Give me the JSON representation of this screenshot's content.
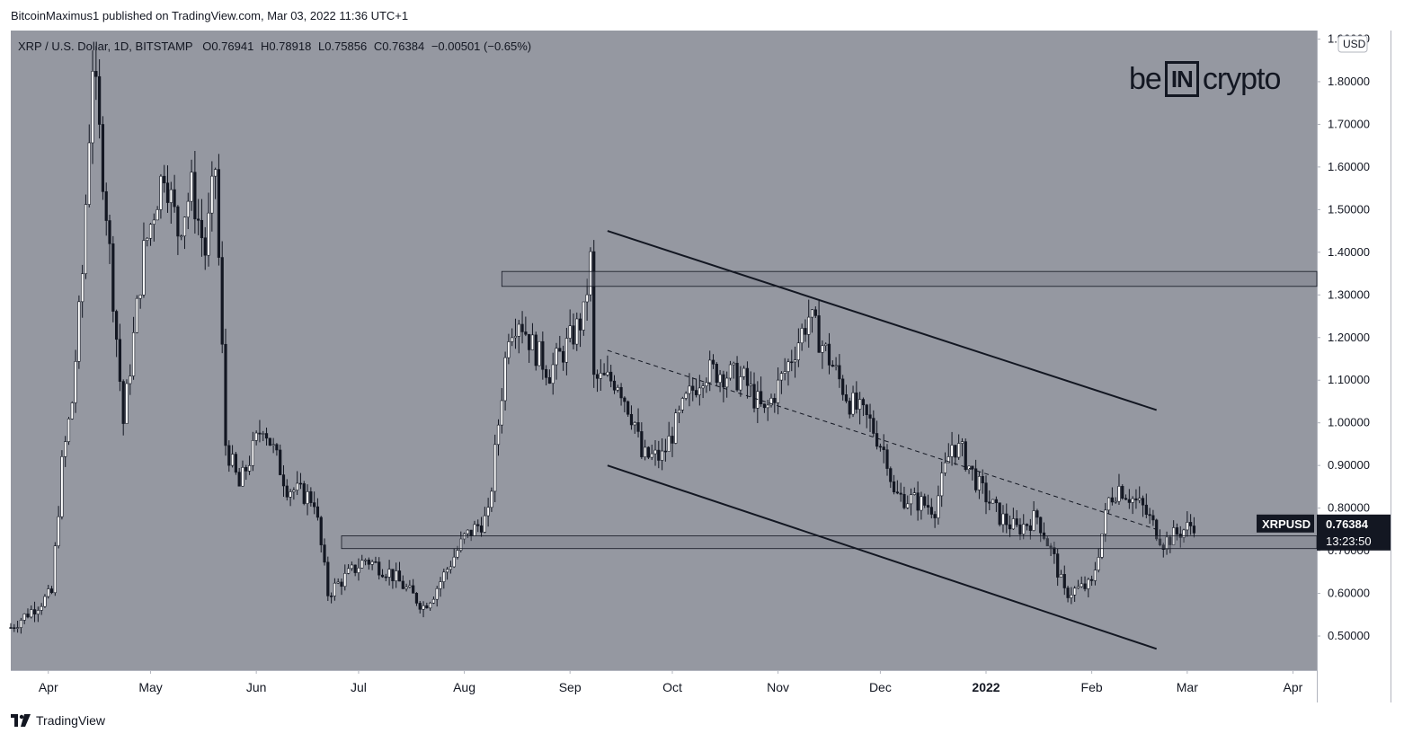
{
  "header": {
    "publisher": "BitcoinMaximus1 published on TradingView.com, Mar 03, 2022 11:36 UTC+1"
  },
  "legend": {
    "symbol": "XRP / U.S. Dollar, 1D, BITSTAMP",
    "o_label": "O",
    "o_value": "0.76941",
    "h_label": "H",
    "h_value": "0.78918",
    "l_label": "L",
    "l_value": "0.75856",
    "c_label": "C",
    "c_value": "0.76384",
    "change": "−0.00501 (−0.65%)"
  },
  "brand": {
    "left": "be",
    "box": "IN",
    "right": "crypto"
  },
  "footer": {
    "label": "TradingView"
  },
  "colors": {
    "plot_background": "#9598a1",
    "candles": "#ffffff",
    "wicks_and_lines": "#131722",
    "price_tag": "#131722"
  },
  "chart_data": {
    "type": "candlestick",
    "symbol": "XRPUSD",
    "currency": "USD",
    "yaxis": {
      "ticks": [
        0.5,
        0.6,
        0.7,
        0.8,
        0.9,
        1.0,
        1.1,
        1.2,
        1.3,
        1.4,
        1.5,
        1.6,
        1.7,
        1.8,
        1.9
      ],
      "tick_labels": [
        "0.50000",
        "0.60000",
        "0.70000",
        "0.80000",
        "0.90000",
        "1.00000",
        "1.10000",
        "1.20000",
        "1.30000",
        "1.40000",
        "1.50000",
        "1.60000",
        "1.70000",
        "1.80000",
        "1.90000"
      ],
      "ylim": [
        0.42,
        1.92
      ],
      "unit_label": "USD"
    },
    "xaxis": {
      "start_date": "2021-03-21",
      "end_date": "2022-04-08",
      "ticks": [
        {
          "date": "2021-04-01",
          "label": "Apr"
        },
        {
          "date": "2021-05-01",
          "label": "May"
        },
        {
          "date": "2021-06-01",
          "label": "Jun"
        },
        {
          "date": "2021-07-01",
          "label": "Jul"
        },
        {
          "date": "2021-08-01",
          "label": "Aug"
        },
        {
          "date": "2021-09-01",
          "label": "Sep"
        },
        {
          "date": "2021-10-01",
          "label": "Oct"
        },
        {
          "date": "2021-11-01",
          "label": "Nov"
        },
        {
          "date": "2021-12-01",
          "label": "Dec"
        },
        {
          "date": "2022-01-01",
          "label": "2022",
          "bold": true
        },
        {
          "date": "2022-02-01",
          "label": "Feb"
        },
        {
          "date": "2022-03-01",
          "label": "Mar"
        },
        {
          "date": "2022-04-01",
          "label": "Apr"
        }
      ]
    },
    "price_path": [
      {
        "date": "2021-03-21",
        "close": 0.52
      },
      {
        "date": "2021-03-27",
        "close": 0.56
      },
      {
        "date": "2021-04-02",
        "close": 0.6
      },
      {
        "date": "2021-04-05",
        "close": 0.9
      },
      {
        "date": "2021-04-08",
        "close": 1.05
      },
      {
        "date": "2021-04-11",
        "close": 1.35
      },
      {
        "date": "2021-04-14",
        "close": 1.85
      },
      {
        "date": "2021-04-18",
        "close": 1.5
      },
      {
        "date": "2021-04-23",
        "close": 1.0
      },
      {
        "date": "2021-04-29",
        "close": 1.4
      },
      {
        "date": "2021-05-05",
        "close": 1.6
      },
      {
        "date": "2021-05-09",
        "close": 1.45
      },
      {
        "date": "2021-05-13",
        "close": 1.55
      },
      {
        "date": "2021-05-17",
        "close": 1.4
      },
      {
        "date": "2021-05-20",
        "close": 1.6
      },
      {
        "date": "2021-05-23",
        "close": 0.95
      },
      {
        "date": "2021-05-27",
        "close": 0.85
      },
      {
        "date": "2021-06-03",
        "close": 1.0
      },
      {
        "date": "2021-06-10",
        "close": 0.85
      },
      {
        "date": "2021-06-18",
        "close": 0.82
      },
      {
        "date": "2021-06-22",
        "close": 0.6
      },
      {
        "date": "2021-06-26",
        "close": 0.63
      },
      {
        "date": "2021-07-03",
        "close": 0.68
      },
      {
        "date": "2021-07-10",
        "close": 0.65
      },
      {
        "date": "2021-07-20",
        "close": 0.57
      },
      {
        "date": "2021-07-23",
        "close": 0.6
      },
      {
        "date": "2021-08-01",
        "close": 0.73
      },
      {
        "date": "2021-08-08",
        "close": 0.78
      },
      {
        "date": "2021-08-11",
        "close": 1.0
      },
      {
        "date": "2021-08-14",
        "close": 1.22
      },
      {
        "date": "2021-08-17",
        "close": 1.25
      },
      {
        "date": "2021-08-21",
        "close": 1.18
      },
      {
        "date": "2021-08-26",
        "close": 1.12
      },
      {
        "date": "2021-08-31",
        "close": 1.18
      },
      {
        "date": "2021-09-05",
        "close": 1.25
      },
      {
        "date": "2021-09-07",
        "close": 1.38
      },
      {
        "date": "2021-09-08",
        "close": 1.1
      },
      {
        "date": "2021-09-15",
        "close": 1.1
      },
      {
        "date": "2021-09-20",
        "close": 1.0
      },
      {
        "date": "2021-09-22",
        "close": 0.92
      },
      {
        "date": "2021-09-28",
        "close": 0.92
      },
      {
        "date": "2021-10-05",
        "close": 1.05
      },
      {
        "date": "2021-10-10",
        "close": 1.12
      },
      {
        "date": "2021-10-15",
        "close": 1.12
      },
      {
        "date": "2021-10-22",
        "close": 1.1
      },
      {
        "date": "2021-10-28",
        "close": 1.02
      },
      {
        "date": "2021-11-03",
        "close": 1.12
      },
      {
        "date": "2021-11-10",
        "close": 1.25
      },
      {
        "date": "2021-11-16",
        "close": 1.15
      },
      {
        "date": "2021-11-22",
        "close": 1.05
      },
      {
        "date": "2021-11-28",
        "close": 1.0
      },
      {
        "date": "2021-12-03",
        "close": 0.92
      },
      {
        "date": "2021-12-05",
        "close": 0.83
      },
      {
        "date": "2021-12-10",
        "close": 0.82
      },
      {
        "date": "2021-12-17",
        "close": 0.8
      },
      {
        "date": "2021-12-22",
        "close": 0.95
      },
      {
        "date": "2021-12-25",
        "close": 0.93
      },
      {
        "date": "2021-12-30",
        "close": 0.85
      },
      {
        "date": "2022-01-05",
        "close": 0.78
      },
      {
        "date": "2022-01-10",
        "close": 0.75
      },
      {
        "date": "2022-01-16",
        "close": 0.78
      },
      {
        "date": "2022-01-21",
        "close": 0.68
      },
      {
        "date": "2022-01-24",
        "close": 0.6
      },
      {
        "date": "2022-02-01",
        "close": 0.62
      },
      {
        "date": "2022-02-06",
        "close": 0.82
      },
      {
        "date": "2022-02-09",
        "close": 0.85
      },
      {
        "date": "2022-02-16",
        "close": 0.8
      },
      {
        "date": "2022-02-22",
        "close": 0.72
      },
      {
        "date": "2022-02-26",
        "close": 0.74
      },
      {
        "date": "2022-03-03",
        "close": 0.76384
      }
    ],
    "drawings": {
      "resistance_box": {
        "date_start": "2021-08-12",
        "date_end": "2022-04-08",
        "y_low": 1.32,
        "y_high": 1.355
      },
      "support_box": {
        "date_start": "2021-06-26",
        "date_end": "2022-04-08",
        "y_low": 0.705,
        "y_high": 0.735
      },
      "channel_upper": {
        "from": {
          "date": "2021-09-12",
          "y": 1.45
        },
        "to": {
          "date": "2022-02-20",
          "y": 1.03
        }
      },
      "channel_lower": {
        "from": {
          "date": "2021-09-12",
          "y": 0.9
        },
        "to": {
          "date": "2022-02-20",
          "y": 0.47
        }
      },
      "channel_mid": {
        "from": {
          "date": "2021-09-12",
          "y": 1.17
        },
        "to": {
          "date": "2022-02-20",
          "y": 0.75
        }
      }
    },
    "last_price": {
      "label": "XRPUSD",
      "value": "0.76384",
      "countdown": "13:23:50",
      "y": 0.76384
    }
  }
}
